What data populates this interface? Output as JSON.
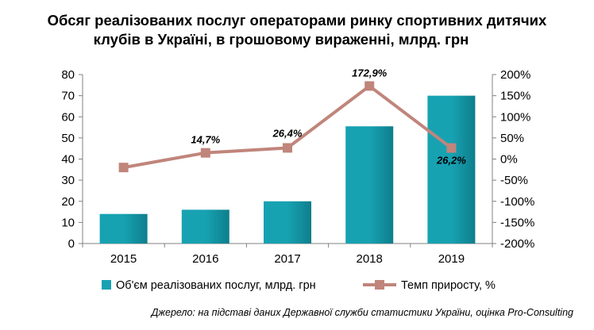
{
  "title": {
    "line1": "Обсяг реалізованих послуг операторами ринку спортивних дитячих",
    "line2": "клубів в Україні, в грошовому вираженні, млрд. грн"
  },
  "source": "Джерело: на підставі даних Державної служби статистики України, оцінка Pro-Consulting",
  "colors": {
    "bar": "#17A2B2",
    "bar_dark": "#0E7E8C",
    "line": "#C0857B",
    "axis": "#808080"
  },
  "chart_data": {
    "type": "bar",
    "categories": [
      "2015",
      "2016",
      "2017",
      "2018",
      "2019"
    ],
    "series": [
      {
        "name": "Об'єм реалізованих послуг, млрд. грн",
        "type": "bar",
        "axis": "left",
        "values": [
          14,
          16,
          20,
          55.5,
          70
        ]
      },
      {
        "name": "Темп приросту, %",
        "type": "line",
        "axis": "right",
        "values": [
          -20,
          14.7,
          26.4,
          172.9,
          26.2
        ],
        "labels": [
          "",
          "14,7%",
          "26,4%",
          "172,9%",
          "26,2%"
        ]
      }
    ],
    "y_left": {
      "min": 0,
      "max": 80,
      "step": 10,
      "ticks": [
        "0",
        "10",
        "20",
        "30",
        "40",
        "50",
        "60",
        "70",
        "80"
      ]
    },
    "y_right": {
      "min": -200,
      "max": 200,
      "step": 50,
      "ticks": [
        "-200%",
        "-150%",
        "-100%",
        "-50%",
        "0%",
        "50%",
        "100%",
        "150%",
        "200%"
      ]
    },
    "legend_position": "bottom",
    "grid": false
  }
}
